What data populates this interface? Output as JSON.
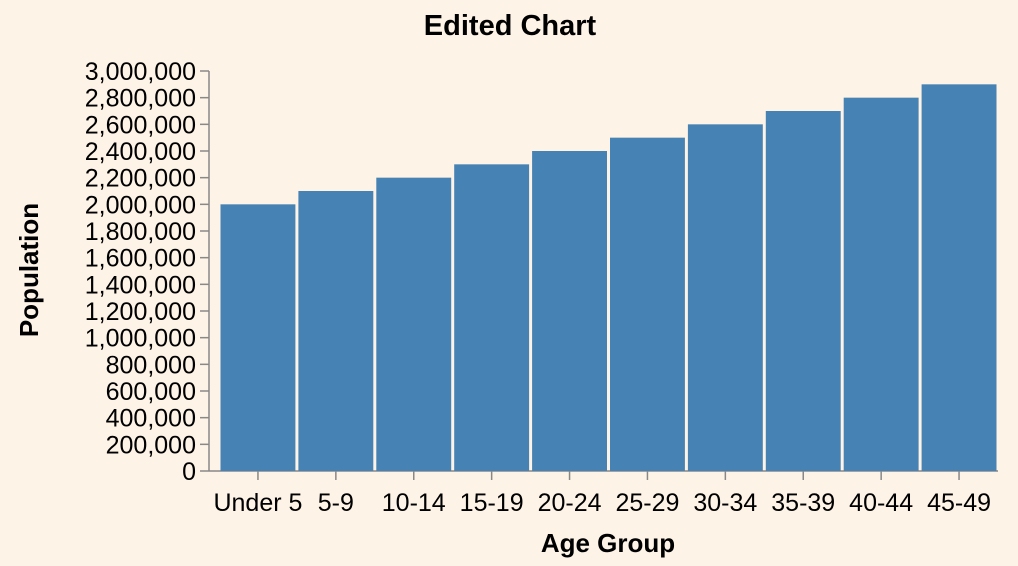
{
  "chart_data": {
    "type": "bar",
    "title": "Edited Chart",
    "xlabel": "Age Group",
    "ylabel": "Population",
    "categories": [
      "Under 5",
      "5-9",
      "10-14",
      "15-19",
      "20-24",
      "25-29",
      "30-34",
      "35-39",
      "40-44",
      "45-49"
    ],
    "values": [
      2000000,
      2100000,
      2200000,
      2300000,
      2400000,
      2500000,
      2600000,
      2700000,
      2800000,
      2900000
    ],
    "ylim": [
      0,
      3000000
    ],
    "yticks": [
      0,
      200000,
      400000,
      600000,
      800000,
      1000000,
      1200000,
      1400000,
      1600000,
      1800000,
      2000000,
      2200000,
      2400000,
      2600000,
      2800000,
      3000000
    ],
    "ytick_labels": [
      "0",
      "200,000",
      "400,000",
      "600,000",
      "800,000",
      "1,000,000",
      "1,200,000",
      "1,400,000",
      "1,600,000",
      "1,800,000",
      "2,000,000",
      "2,200,000",
      "2,400,000",
      "2,600,000",
      "2,800,000",
      "3,000,000"
    ],
    "grid": false,
    "colors": {
      "bar": "#4682b4",
      "background": "#fdf3e6",
      "axis": "#888888"
    }
  }
}
